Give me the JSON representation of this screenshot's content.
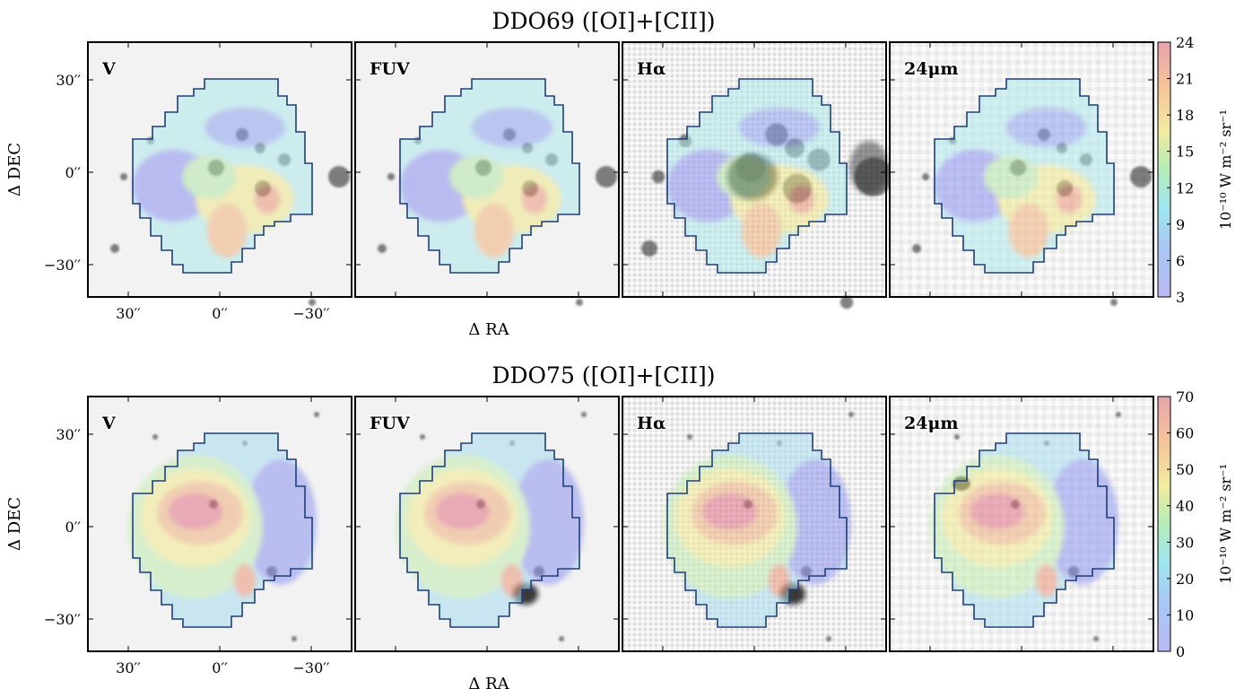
{
  "figure": {
    "rows": [
      {
        "title": "DDO69 ([OI]+[CII])",
        "panels": [
          "V",
          "FUV",
          "Hα",
          "24μm"
        ],
        "ylabel": "Δ DEC",
        "xlabel": "Δ RA",
        "yticks": [
          "30′′",
          "0′′",
          "−30′′"
        ],
        "xticks": [
          "30′′",
          "0′′",
          "−30′′"
        ],
        "colorbar": {
          "ticks": [
            "24",
            "21",
            "18",
            "15",
            "12",
            "9",
            "6",
            "3"
          ],
          "label": "10⁻¹⁰ W m⁻² sr⁻¹",
          "range": [
            3,
            24
          ]
        }
      },
      {
        "title": "DDO75 ([OI]+[CII])",
        "panels": [
          "V",
          "FUV",
          "Hα",
          "24μm"
        ],
        "ylabel": "Δ DEC",
        "xlabel": "Δ RA",
        "yticks": [
          "30′′",
          "0′′",
          "−30′′"
        ],
        "xticks": [
          "30′′",
          "0′′",
          "−30′′"
        ],
        "colorbar": {
          "ticks": [
            "70",
            "60",
            "50",
            "40",
            "30",
            "20",
            "10",
            "0"
          ],
          "label": "10⁻¹⁰ W m⁻² sr⁻¹",
          "range": [
            0,
            70
          ]
        }
      }
    ],
    "colors": {
      "contour_outline": "#1f3f7a",
      "colormap": [
        "#6f6fe8",
        "#3ec7e6",
        "#7fe08a",
        "#f3e86a",
        "#f4a35c",
        "#e05a73"
      ]
    }
  }
}
